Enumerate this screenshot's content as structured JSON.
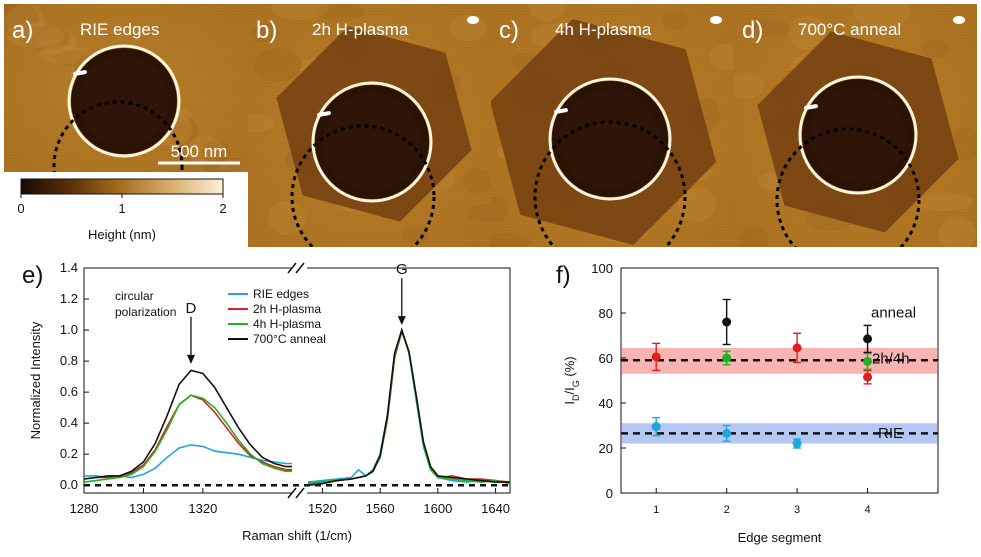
{
  "afm": {
    "panels": [
      {
        "letter": "a)",
        "title": "RIE edges",
        "shape": "circle"
      },
      {
        "letter": "b)",
        "title": "2h H-plasma",
        "shape": "hexagon-small"
      },
      {
        "letter": "c)",
        "title": "4h H-plasma",
        "shape": "hexagon-large"
      },
      {
        "letter": "d)",
        "title": "700°C anneal",
        "shape": "hexagon-medium"
      }
    ],
    "scalebar_label": "500 nm",
    "colorbar": {
      "ticks": [
        "0",
        "1",
        "2"
      ],
      "label": "Height (nm)",
      "colors": [
        "#160a02",
        "#5e3208",
        "#a8701e",
        "#d9b070",
        "#fbf1d8"
      ]
    }
  },
  "chart_data": [
    {
      "type": "line",
      "panel_label": "e)",
      "xlabel": "Raman shift (1/cm)",
      "ylabel": "Normalized Intensity",
      "ylim": [
        -0.05,
        1.4
      ],
      "yticks": [
        0.0,
        0.2,
        0.4,
        0.6,
        0.8,
        1.0,
        1.2,
        1.4
      ],
      "ytick_labels": [
        "0.0",
        "0.2",
        "0.4",
        "0.6",
        "0.8",
        "1.0",
        "1.2",
        "1.4"
      ],
      "x_segments": [
        {
          "xlim": [
            1280,
            1350
          ],
          "ticks": [
            1280,
            1300,
            1320
          ]
        },
        {
          "xlim": [
            1510,
            1650
          ],
          "ticks": [
            1520,
            1560,
            1600,
            1640
          ]
        }
      ],
      "inset_text": [
        "circular",
        "polarization"
      ],
      "peak_annotations": [
        {
          "label": "D",
          "x": 1316,
          "y": 0.75
        },
        {
          "label": "G",
          "x": 1575,
          "y": 1.0
        }
      ],
      "baseline": 0.0,
      "series": [
        {
          "name": "RIE edges",
          "color": "#1ea6dc",
          "d_band": {
            "x": [
              1280,
              1284,
              1288,
              1292,
              1296,
              1300,
              1304,
              1308,
              1312,
              1316,
              1320,
              1324,
              1328,
              1332,
              1336,
              1340,
              1344,
              1348,
              1350
            ],
            "y": [
              0.06,
              0.06,
              0.05,
              0.06,
              0.05,
              0.07,
              0.11,
              0.18,
              0.24,
              0.26,
              0.25,
              0.22,
              0.21,
              0.2,
              0.18,
              0.16,
              0.15,
              0.14,
              0.14
            ]
          },
          "g_band": {
            "x": [
              1510,
              1520,
              1530,
              1540,
              1545,
              1550,
              1555,
              1560,
              1565,
              1570,
              1575,
              1580,
              1585,
              1590,
              1595,
              1600,
              1610,
              1620,
              1630,
              1640,
              1650
            ],
            "y": [
              0.02,
              0.03,
              0.04,
              0.05,
              0.1,
              0.06,
              0.1,
              0.2,
              0.45,
              0.85,
              1.0,
              0.85,
              0.55,
              0.25,
              0.1,
              0.05,
              0.03,
              0.02,
              0.03,
              0.02,
              0.02
            ]
          }
        },
        {
          "name": "2h H-plasma",
          "color": "#e0201e",
          "d_band": {
            "x": [
              1280,
              1284,
              1288,
              1292,
              1296,
              1300,
              1304,
              1308,
              1312,
              1316,
              1320,
              1324,
              1328,
              1332,
              1336,
              1340,
              1344,
              1348,
              1350
            ],
            "y": [
              0.04,
              0.05,
              0.05,
              0.06,
              0.08,
              0.13,
              0.23,
              0.38,
              0.52,
              0.58,
              0.55,
              0.47,
              0.37,
              0.27,
              0.19,
              0.15,
              0.12,
              0.1,
              0.1
            ]
          },
          "g_band": {
            "x": [
              1510,
              1520,
              1530,
              1540,
              1545,
              1550,
              1555,
              1560,
              1565,
              1570,
              1575,
              1580,
              1585,
              1590,
              1595,
              1600,
              1610,
              1620,
              1630,
              1640,
              1650
            ],
            "y": [
              0.01,
              0.02,
              0.03,
              0.04,
              0.05,
              0.06,
              0.09,
              0.18,
              0.42,
              0.82,
              0.99,
              0.86,
              0.57,
              0.27,
              0.11,
              0.05,
              0.06,
              0.04,
              0.04,
              0.03,
              0.02
            ]
          }
        },
        {
          "name": "4h H-plasma",
          "color": "#22b022",
          "d_band": {
            "x": [
              1280,
              1284,
              1288,
              1292,
              1296,
              1300,
              1304,
              1308,
              1312,
              1316,
              1320,
              1324,
              1328,
              1332,
              1336,
              1340,
              1344,
              1348,
              1350
            ],
            "y": [
              0.02,
              0.03,
              0.04,
              0.05,
              0.07,
              0.12,
              0.22,
              0.36,
              0.52,
              0.58,
              0.56,
              0.5,
              0.4,
              0.29,
              0.2,
              0.14,
              0.11,
              0.09,
              0.09
            ]
          },
          "g_band": {
            "x": [
              1510,
              1520,
              1530,
              1540,
              1545,
              1550,
              1555,
              1560,
              1565,
              1570,
              1575,
              1580,
              1585,
              1590,
              1595,
              1600,
              1610,
              1620,
              1630,
              1640,
              1650
            ],
            "y": [
              0.01,
              0.02,
              0.03,
              0.04,
              0.05,
              0.06,
              0.09,
              0.18,
              0.43,
              0.83,
              1.0,
              0.85,
              0.56,
              0.26,
              0.1,
              0.05,
              0.04,
              0.03,
              0.02,
              0.03,
              0.01
            ]
          }
        },
        {
          "name": "700°C anneal",
          "color": "#111111",
          "d_band": {
            "x": [
              1280,
              1284,
              1288,
              1292,
              1296,
              1300,
              1304,
              1308,
              1312,
              1316,
              1320,
              1324,
              1328,
              1332,
              1336,
              1340,
              1344,
              1348,
              1350
            ],
            "y": [
              0.04,
              0.05,
              0.06,
              0.06,
              0.09,
              0.15,
              0.27,
              0.45,
              0.65,
              0.74,
              0.72,
              0.63,
              0.5,
              0.37,
              0.26,
              0.18,
              0.14,
              0.12,
              0.12
            ]
          },
          "g_band": {
            "x": [
              1510,
              1520,
              1530,
              1540,
              1545,
              1550,
              1555,
              1560,
              1565,
              1570,
              1575,
              1580,
              1585,
              1590,
              1595,
              1600,
              1610,
              1620,
              1630,
              1640,
              1650
            ],
            "y": [
              0.0,
              0.01,
              0.03,
              0.04,
              0.05,
              0.06,
              0.09,
              0.19,
              0.45,
              0.85,
              1.0,
              0.86,
              0.58,
              0.28,
              0.12,
              0.06,
              0.05,
              0.04,
              0.03,
              0.02,
              0.02
            ]
          }
        }
      ]
    },
    {
      "type": "scatter",
      "panel_label": "f)",
      "xlabel": "Edge segment",
      "ylabel_main": "I",
      "ylabel_sub1": "D",
      "ylabel_mid": "/I",
      "ylabel_sub2": "G",
      "ylabel_tail": " (%)",
      "xlim": [
        0.5,
        5
      ],
      "ylim": [
        0,
        100
      ],
      "xticks": [
        1,
        2,
        3,
        4
      ],
      "yticks": [
        0,
        20,
        40,
        60,
        80,
        100
      ],
      "bands": [
        {
          "name": "2h/4h",
          "center": 59,
          "low": 53,
          "high": 64.5,
          "color": "#f7a6a6"
        },
        {
          "name": "RIE",
          "center": 26.5,
          "low": 22,
          "high": 31,
          "color": "#a6bdf0"
        }
      ],
      "band_labels": [
        "anneal",
        "2h/4h",
        "RIE"
      ],
      "series": [
        {
          "name": "RIE edges",
          "color": "#1ea6dc",
          "points": [
            {
              "x": 1,
              "y": 29.5,
              "err": 4
            },
            {
              "x": 2,
              "y": 26.5,
              "err": 3.5
            },
            {
              "x": 3,
              "y": 22,
              "err": 2
            }
          ]
        },
        {
          "name": "2h H-plasma",
          "color": "#e0201e",
          "points": [
            {
              "x": 1,
              "y": 60.5,
              "err": 6
            },
            {
              "x": 3,
              "y": 64.5,
              "err": 6.5
            },
            {
              "x": 4,
              "y": 51.5,
              "err": 3
            }
          ]
        },
        {
          "name": "4h H-plasma",
          "color": "#22b022",
          "points": [
            {
              "x": 2,
              "y": 60,
              "err": 3
            },
            {
              "x": 4,
              "y": 58.5,
              "err": 3.5
            }
          ]
        },
        {
          "name": "700°C anneal",
          "color": "#111111",
          "points": [
            {
              "x": 2,
              "y": 76,
              "err": 10
            },
            {
              "x": 4,
              "y": 68.5,
              "err": 6
            }
          ]
        }
      ]
    }
  ]
}
